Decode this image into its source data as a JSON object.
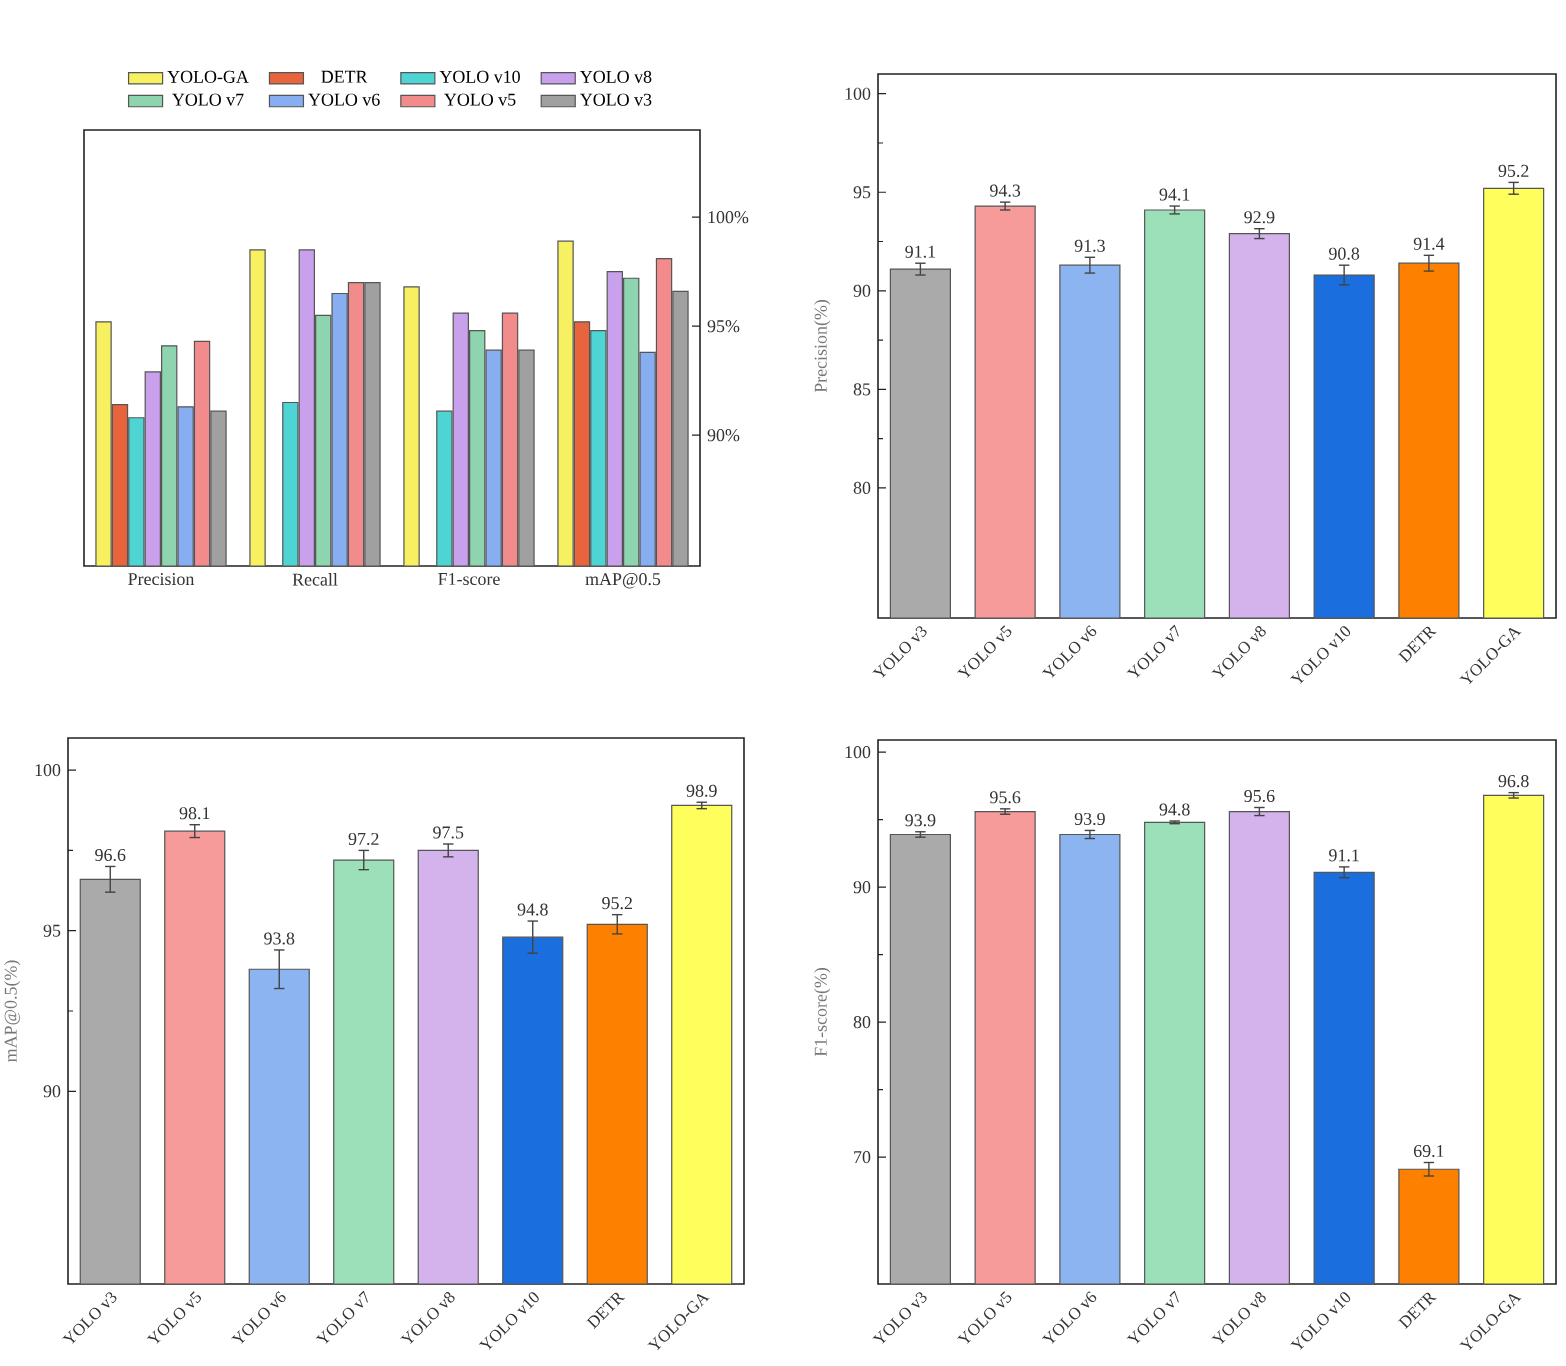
{
  "chart_data": [
    {
      "type": "bar",
      "categories": [
        "Precision",
        "Recall",
        "F1-score",
        "mAP@0.5"
      ],
      "series": [
        {
          "name": "YOLO-GA",
          "color": "#f7f060",
          "values": [
            95.2,
            98.5,
            96.8,
            98.9
          ]
        },
        {
          "name": "DETR",
          "color": "#e8643c",
          "values": [
            91.4,
            null,
            null,
            95.2
          ]
        },
        {
          "name": "YOLO v10",
          "color": "#4fd4d4",
          "values": [
            90.8,
            91.5,
            91.1,
            94.8
          ]
        },
        {
          "name": "YOLO v8",
          "color": "#c8a0ec",
          "values": [
            92.9,
            98.5,
            95.6,
            97.5
          ]
        },
        {
          "name": "YOLO v7",
          "color": "#8ed4ae",
          "values": [
            94.1,
            95.5,
            94.8,
            97.2
          ]
        },
        {
          "name": "YOLO v6",
          "color": "#86aef0",
          "values": [
            91.3,
            96.5,
            93.9,
            93.8
          ]
        },
        {
          "name": "YOLO v5",
          "color": "#f28c8c",
          "values": [
            94.3,
            97.0,
            95.6,
            98.1
          ]
        },
        {
          "name": "YOLO v3",
          "color": "#a0a0a0",
          "values": [
            91.1,
            97.0,
            93.9,
            96.6
          ]
        }
      ],
      "ylim": [
        84,
        104
      ],
      "yticks": [
        {
          "value": 90,
          "label": "90%"
        },
        {
          "value": 95,
          "label": "95%"
        },
        {
          "value": 100,
          "label": "100%"
        }
      ],
      "legend": "top"
    },
    {
      "type": "bar",
      "categories": [
        "YOLO v3",
        "YOLO v5",
        "YOLO v6",
        "YOLO v7",
        "YOLO v8",
        "YOLO v10",
        "DETR",
        "YOLO-GA"
      ],
      "values": [
        91.1,
        94.3,
        91.3,
        94.1,
        92.9,
        90.8,
        91.4,
        95.2
      ],
      "errors": [
        0.3,
        0.2,
        0.4,
        0.2,
        0.25,
        0.5,
        0.4,
        0.3
      ],
      "colors": [
        "#aaaaaa",
        "#f69a9a",
        "#8cb4f0",
        "#9ce0ba",
        "#d4b2eb",
        "#1b6ede",
        "#fe8000",
        "#fefe5c"
      ],
      "ylabel": "Precision(%)",
      "ylim": [
        73.4,
        101
      ],
      "yticks": [
        80,
        85,
        90,
        95,
        100
      ],
      "data_labels": true
    },
    {
      "type": "bar",
      "categories": [
        "YOLO v3",
        "YOLO v5",
        "YOLO v6",
        "YOLO v7",
        "YOLO v8",
        "YOLO v10",
        "DETR",
        "YOLO-GA"
      ],
      "values": [
        96.6,
        98.1,
        93.8,
        97.2,
        97.5,
        94.8,
        95.2,
        98.9
      ],
      "errors": [
        0.4,
        0.2,
        0.6,
        0.3,
        0.2,
        0.5,
        0.3,
        0.1
      ],
      "colors": [
        "#aaaaaa",
        "#f69a9a",
        "#8cb4f0",
        "#9ce0ba",
        "#d4b2eb",
        "#1b6ede",
        "#fe8000",
        "#fefe5c"
      ],
      "ylabel": "mAP@0.5(%)",
      "ylim": [
        84,
        101
      ],
      "yticks": [
        90,
        95,
        100
      ],
      "data_labels": true
    },
    {
      "type": "bar",
      "categories": [
        "YOLO v3",
        "YOLO v5",
        "YOLO v6",
        "YOLO v7",
        "YOLO v8",
        "YOLO v10",
        "DETR",
        "YOLO-GA"
      ],
      "values": [
        93.9,
        95.6,
        93.9,
        94.8,
        95.6,
        91.1,
        69.1,
        96.8
      ],
      "errors": [
        0.2,
        0.2,
        0.3,
        0.1,
        0.3,
        0.4,
        0.5,
        0.2
      ],
      "colors": [
        "#aaaaaa",
        "#f69a9a",
        "#8cb4f0",
        "#9ce0ba",
        "#d4b2eb",
        "#1b6ede",
        "#fe8000",
        "#fefe5c"
      ],
      "ylabel": "F1-score(%)",
      "ylim": [
        60.6,
        100.9
      ],
      "yticks": [
        70,
        80,
        90,
        100
      ],
      "data_labels": true
    }
  ]
}
